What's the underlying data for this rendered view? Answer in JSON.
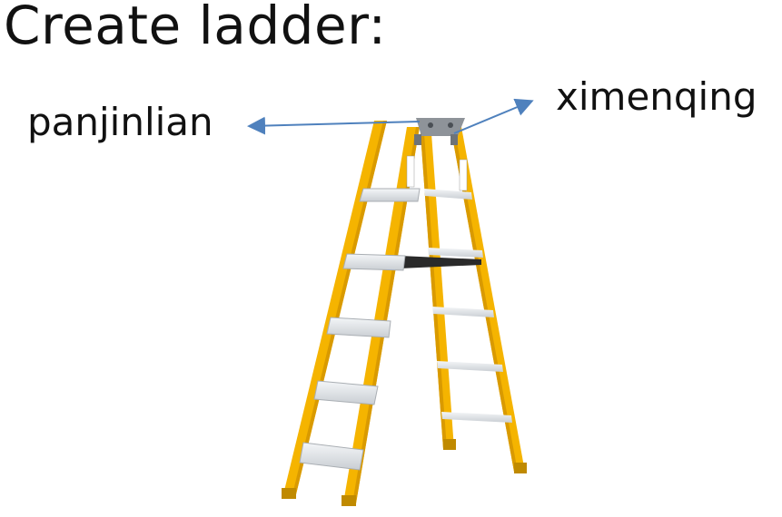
{
  "title": "Create ladder:",
  "labels": {
    "left": "panjinlian",
    "right": "ximenqing"
  },
  "colors": {
    "ladder_rail": "#F5B400",
    "ladder_rail_shade": "#D99A00",
    "step": "#E2E6EA",
    "arrow": "#4F81BD",
    "text": "#111111",
    "background": "#FFFFFF"
  },
  "icons": {
    "ladder": "ladder-picture",
    "arrows": "arrow-icon"
  }
}
